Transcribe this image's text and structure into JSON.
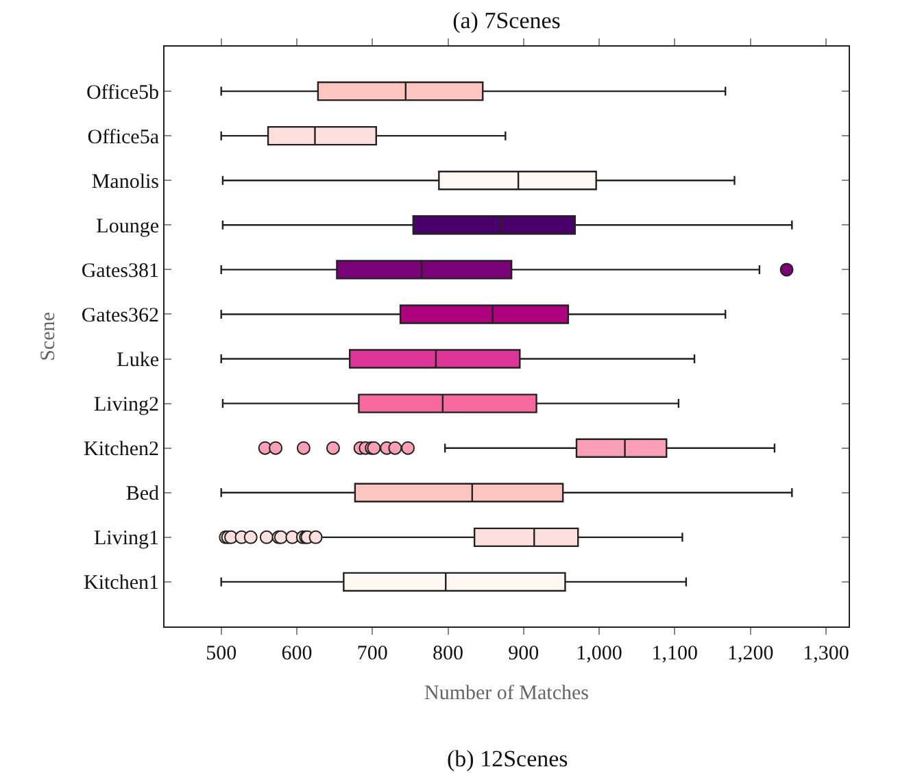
{
  "chart_data": {
    "type": "box",
    "orientation": "horizontal",
    "title": "(a) 7Scenes",
    "xlabel": "Number of Matches",
    "ylabel": "Scene",
    "annotations": [
      "(b) 12Scenes"
    ],
    "categories": [
      "Office5b",
      "Office5a",
      "Manolis",
      "Lounge",
      "Gates381",
      "Gates362",
      "Luke",
      "Living2",
      "Kitchen2",
      "Bed",
      "Living1",
      "Kitchen1"
    ],
    "colors": [
      "#fcc5c0",
      "#fde0dd",
      "#fff7f3",
      "#49006a",
      "#7a0177",
      "#ae017e",
      "#dd3497",
      "#f768a1",
      "#fa9fb5",
      "#fcc5c0",
      "#fde0dd",
      "#fff7f3"
    ],
    "boxes": [
      {
        "low": 500,
        "q1": 628,
        "median": 744,
        "q3": 846,
        "high": 1167
      },
      {
        "low": 500,
        "q1": 562,
        "median": 624,
        "q3": 705,
        "high": 876
      },
      {
        "low": 502,
        "q1": 788,
        "median": 893,
        "q3": 996,
        "high": 1179
      },
      {
        "low": 502,
        "q1": 754,
        "median": 870,
        "q3": 968,
        "high": 1255
      },
      {
        "low": 500,
        "q1": 653,
        "median": 765,
        "q3": 884,
        "high": 1212,
        "outliers": [
          1248
        ]
      },
      {
        "low": 500,
        "q1": 737,
        "median": 859,
        "q3": 959,
        "high": 1167
      },
      {
        "low": 500,
        "q1": 670,
        "median": 784,
        "q3": 895,
        "high": 1126
      },
      {
        "low": 502,
        "q1": 682,
        "median": 793,
        "q3": 917,
        "high": 1105
      },
      {
        "low": 796,
        "q1": 970,
        "median": 1034,
        "q3": 1089,
        "high": 1232,
        "outliers": [
          558,
          572,
          609,
          648,
          684,
          691,
          699,
          702,
          719,
          730,
          747
        ]
      },
      {
        "low": 500,
        "q1": 677,
        "median": 832,
        "q3": 952,
        "high": 1255
      },
      {
        "low": 630,
        "q1": 835,
        "median": 914,
        "q3": 972,
        "high": 1110,
        "outliers": [
          506,
          509,
          513,
          527,
          539,
          560,
          576,
          579,
          594,
          608,
          612,
          614,
          625
        ]
      },
      {
        "low": 500,
        "q1": 662,
        "median": 797,
        "q3": 955,
        "high": 1115
      }
    ],
    "xlim": [
      425,
      1330
    ],
    "xticks": [
      500,
      600,
      700,
      800,
      900,
      {
        "value": 1000,
        "label": "1,000"
      },
      {
        "value": 1100,
        "label": "1,100"
      },
      {
        "value": 1200,
        "label": "1,200"
      },
      {
        "value": 1300,
        "label": "1,300"
      }
    ],
    "marker": "circle"
  }
}
